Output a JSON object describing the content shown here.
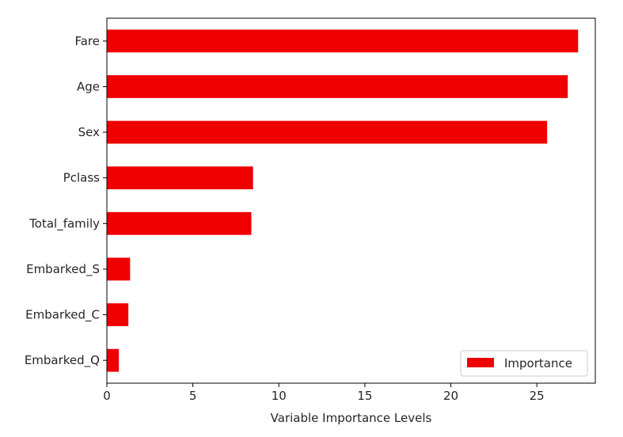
{
  "chart_data": {
    "type": "bar",
    "orientation": "horizontal",
    "categories": [
      "Fare",
      "Age",
      "Sex",
      "Pclass",
      "Total_family",
      "Embarked_S",
      "Embarked_C",
      "Embarked_Q"
    ],
    "series": [
      {
        "name": "Importance",
        "color": "#ee0000",
        "values": [
          27.4,
          26.8,
          25.6,
          8.5,
          8.4,
          1.35,
          1.25,
          0.7
        ]
      }
    ],
    "xlabel": "Variable Importance Levels",
    "ylabel": "",
    "title": "",
    "xlim": [
      0,
      28.4
    ],
    "xticks": [
      0,
      5,
      10,
      15,
      20,
      25
    ],
    "grid": false,
    "legend": {
      "position": "bottom-right",
      "label": "Importance"
    }
  }
}
